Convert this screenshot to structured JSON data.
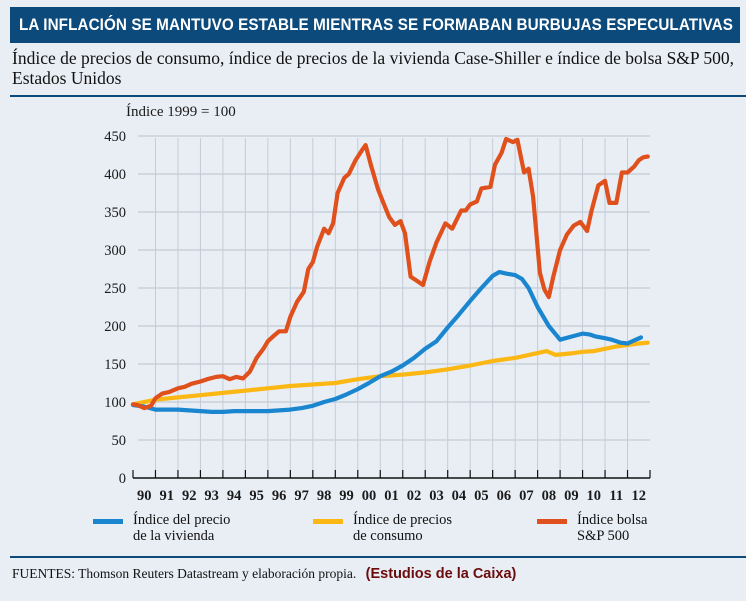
{
  "header": {
    "title": "LA INFLACIÓN SE MANTUVO ESTABLE MIENTRAS SE FORMABAN BURBUJAS ESPECULATIVAS",
    "subtitle": "Índice de precios de consumo, índice de precios de la vivienda Case-Shiller e índice de bolsa S&P 500, Estados Unidos"
  },
  "footer": {
    "sources": "FUENTES: Thomson Reuters Datastream y elaboración propia.",
    "credit": "(Estudios de la Caixa)"
  },
  "colors": {
    "header_bg": "#0b4a7b",
    "housing": "#1a86cf",
    "cpi": "#fbb714",
    "sp500": "#e0501c",
    "grid": "#c2ccd8",
    "background": "#e9eef5"
  },
  "chart_data": {
    "type": "line",
    "title": "LA INFLACIÓN SE MANTUVO ESTABLE MIENTRAS SE FORMABAN BURBUJAS ESPECULATIVAS",
    "subtitle": "Índice de precios de consumo, índice de precios de la vivienda Case-Shiller e índice de bolsa S&P 500, Estados Unidos",
    "ylabel": "Índice 1999 = 100",
    "xlabel": "",
    "ylim": [
      0,
      450
    ],
    "xlim": [
      1990,
      2013
    ],
    "yticks": [
      0,
      50,
      100,
      150,
      200,
      250,
      300,
      350,
      400,
      450
    ],
    "xtick_labels": [
      "90",
      "91",
      "92",
      "93",
      "94",
      "95",
      "96",
      "97",
      "98",
      "99",
      "00",
      "01",
      "02",
      "03",
      "04",
      "05",
      "06",
      "07",
      "08",
      "09",
      "10",
      "11",
      "12"
    ],
    "grid": true,
    "legend_position": "bottom",
    "series": [
      {
        "key": "housing",
        "name": "Índice del precio\nde la vivienda",
        "x": [
          1990.0,
          1990.5,
          1991.0,
          1991.5,
          1992.0,
          1992.5,
          1993.0,
          1993.5,
          1994.0,
          1994.5,
          1995.0,
          1995.5,
          1996.0,
          1996.5,
          1997.0,
          1997.5,
          1998.0,
          1998.5,
          1999.0,
          1999.5,
          2000.0,
          2000.5,
          2001.0,
          2001.5,
          2002.0,
          2002.5,
          2003.0,
          2003.5,
          2004.0,
          2004.5,
          2005.0,
          2005.5,
          2006.0,
          2006.3,
          2006.6,
          2007.0,
          2007.3,
          2007.6,
          2008.0,
          2008.5,
          2009.0,
          2009.5,
          2010.0,
          2010.3,
          2010.6,
          2011.0,
          2011.3,
          2011.7,
          2012.0,
          2012.3,
          2012.6
        ],
        "values": [
          96,
          94,
          90,
          90,
          90,
          89,
          88,
          87,
          87,
          88,
          88,
          88,
          88,
          89,
          90,
          92,
          95,
          100,
          104,
          110,
          117,
          125,
          134,
          140,
          148,
          158,
          170,
          180,
          198,
          215,
          233,
          250,
          266,
          271,
          269,
          267,
          262,
          250,
          225,
          200,
          182,
          186,
          190,
          189,
          186,
          184,
          182,
          178,
          177,
          181,
          185
        ]
      },
      {
        "key": "cpi",
        "name": "Índice de precios\nde consumo",
        "x": [
          1990.0,
          1991.0,
          1992.0,
          1993.0,
          1994.0,
          1995.0,
          1996.0,
          1997.0,
          1998.0,
          1999.0,
          2000.0,
          2001.0,
          2002.0,
          2003.0,
          2004.0,
          2005.0,
          2006.0,
          2007.0,
          2007.8,
          2008.4,
          2008.8,
          2009.5,
          2010.0,
          2010.5,
          2011.0,
          2011.5,
          2012.0,
          2012.5,
          2012.9
        ],
        "values": [
          97,
          103,
          106,
          109,
          112,
          115,
          118,
          121,
          123,
          125,
          130,
          134,
          136,
          139,
          143,
          148,
          154,
          158,
          163,
          167,
          162,
          164,
          166,
          167,
          170,
          173,
          175,
          177,
          178
        ]
      },
      {
        "key": "sp500",
        "name": "Índice bolsa\nS&P 500",
        "x": [
          1990.0,
          1990.2,
          1990.5,
          1990.8,
          1991.0,
          1991.3,
          1991.6,
          1992.0,
          1992.3,
          1992.6,
          1993.0,
          1993.3,
          1993.7,
          1994.0,
          1994.3,
          1994.6,
          1994.9,
          1995.2,
          1995.5,
          1995.8,
          1996.0,
          1996.3,
          1996.5,
          1996.8,
          1997.0,
          1997.3,
          1997.6,
          1997.8,
          1998.0,
          1998.2,
          1998.5,
          1998.7,
          1998.9,
          1999.1,
          1999.4,
          1999.6,
          1999.9,
          2000.2,
          2000.35,
          2000.6,
          2000.9,
          2001.1,
          2001.4,
          2001.65,
          2001.9,
          2002.1,
          2002.35,
          2002.6,
          2002.9,
          2003.2,
          2003.5,
          2003.9,
          2004.2,
          2004.4,
          2004.6,
          2004.8,
          2005.0,
          2005.3,
          2005.5,
          2005.9,
          2006.1,
          2006.4,
          2006.6,
          2006.9,
          2007.1,
          2007.4,
          2007.6,
          2007.8,
          2008.1,
          2008.3,
          2008.5,
          2008.7,
          2009.0,
          2009.3,
          2009.6,
          2009.9,
          2010.2,
          2010.4,
          2010.7,
          2011.0,
          2011.2,
          2011.5,
          2011.75,
          2012.0,
          2012.3,
          2012.5,
          2012.7,
          2012.9
        ],
        "values": [
          97,
          96,
          92,
          95,
          105,
          111,
          113,
          118,
          120,
          124,
          127,
          130,
          133,
          134,
          130,
          133,
          131,
          140,
          158,
          170,
          180,
          188,
          193,
          193,
          212,
          232,
          245,
          275,
          284,
          305,
          328,
          322,
          335,
          375,
          395,
          400,
          418,
          432,
          438,
          410,
          380,
          365,
          343,
          333,
          338,
          322,
          265,
          260,
          254,
          285,
          310,
          335,
          328,
          340,
          352,
          352,
          360,
          364,
          381,
          383,
          412,
          428,
          446,
          442,
          445,
          402,
          407,
          370,
          270,
          248,
          238,
          265,
          300,
          320,
          332,
          337,
          325,
          352,
          385,
          391,
          362,
          362,
          402,
          402,
          410,
          418,
          422,
          423
        ]
      }
    ]
  }
}
